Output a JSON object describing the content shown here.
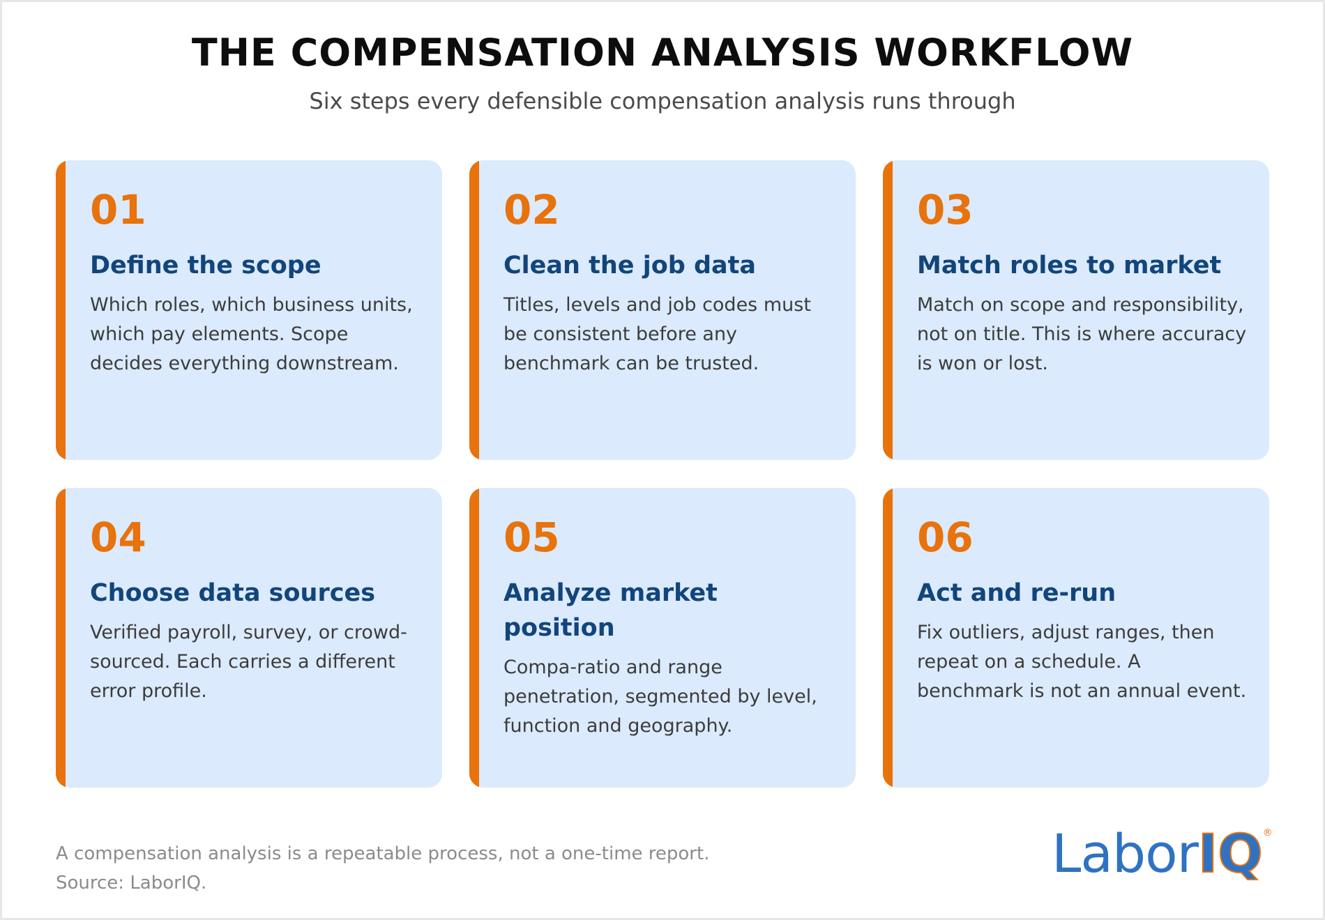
{
  "header": {
    "title": "THE COMPENSATION ANALYSIS WORKFLOW",
    "subtitle": "Six steps every defensible compensation analysis runs through"
  },
  "steps": [
    {
      "number": "01",
      "title": "Define the scope",
      "text": "Which roles, which business units, which pay elements. Scope decides everything downstream."
    },
    {
      "number": "02",
      "title": "Clean the job data",
      "text": "Titles, levels and job codes must be consistent before any benchmark can be trusted."
    },
    {
      "number": "03",
      "title": "Match roles to market",
      "text": "Match on scope and responsibility, not on title. This is where accuracy is won or lost."
    },
    {
      "number": "04",
      "title": "Choose data sources",
      "text": "Verified payroll, survey, or crowd-sourced. Each carries a different error profile."
    },
    {
      "number": "05",
      "title": "Analyze market position",
      "text": "Compa-ratio and range penetration, segmented by level, function and geography."
    },
    {
      "number": "06",
      "title": "Act and re-run",
      "text": "Fix outliers, adjust ranges, then repeat on a schedule. A benchmark is not an annual event."
    }
  ],
  "footer": {
    "note": "A compensation analysis is a repeatable process, not a one-time report.",
    "source": "Source: LaborIQ."
  },
  "logo": {
    "part1": "Labor",
    "part2": "IQ",
    "mark": "®"
  },
  "colors": {
    "accent": "#e8720c",
    "heading": "#12457a",
    "card": "#dbeafc"
  }
}
